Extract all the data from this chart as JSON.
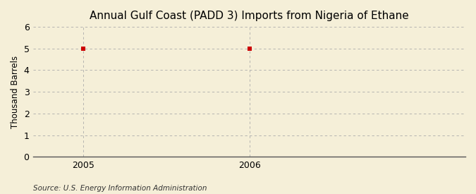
{
  "title": "Annual Gulf Coast (PADD 3) Imports from Nigeria of Ethane",
  "ylabel": "Thousand Barrels",
  "source": "Source: U.S. Energy Information Administration",
  "x_values": [
    2005,
    2006
  ],
  "y_values": [
    5,
    5
  ],
  "xlim": [
    2004.7,
    2007.3
  ],
  "ylim": [
    0,
    6
  ],
  "yticks": [
    0,
    1,
    2,
    3,
    4,
    5,
    6
  ],
  "xticks": [
    2005,
    2006
  ],
  "marker_color": "#cc0000",
  "marker_size": 4,
  "grid_color": "#aaaaaa",
  "background_color": "#f5efd8",
  "title_fontsize": 11,
  "label_fontsize": 8.5,
  "tick_fontsize": 9,
  "source_fontsize": 7.5
}
